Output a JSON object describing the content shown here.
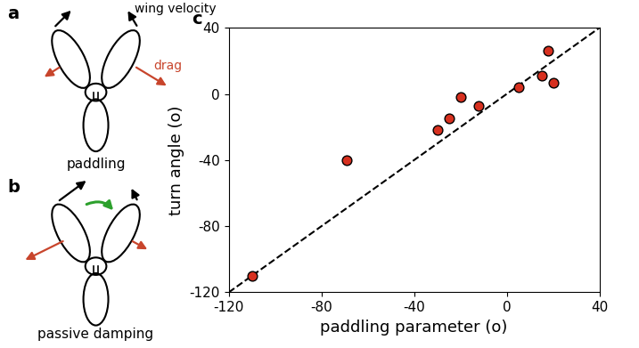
{
  "diagrams": [
    {
      "panel": "a",
      "caption": "paddling",
      "velocity_label": "wing velocity",
      "force_label": "drag"
    },
    {
      "panel": "b",
      "caption": "passive damping"
    }
  ],
  "chart_data": {
    "panel": "c",
    "type": "scatter",
    "x_label": "paddling parameter (o)",
    "y_label": "turn angle (o)",
    "x": [
      -110,
      -69,
      -30,
      -25,
      -20,
      -12,
      5,
      15,
      18,
      20
    ],
    "values": [
      -110,
      -40,
      -22,
      -15,
      -2,
      -7,
      4,
      11,
      26,
      7
    ],
    "color": "#d7301f",
    "marker": "o",
    "xlim": [
      -120,
      40
    ],
    "ylim": [
      -120,
      40
    ],
    "xticks": [
      -120,
      -80,
      -40,
      0,
      40
    ],
    "yticks": [
      -120,
      -80,
      -40,
      0,
      40
    ],
    "reference_line": {
      "x": [
        -120,
        40
      ],
      "values": [
        -120,
        40
      ],
      "line_style": "dashed",
      "color": "#000000"
    }
  }
}
